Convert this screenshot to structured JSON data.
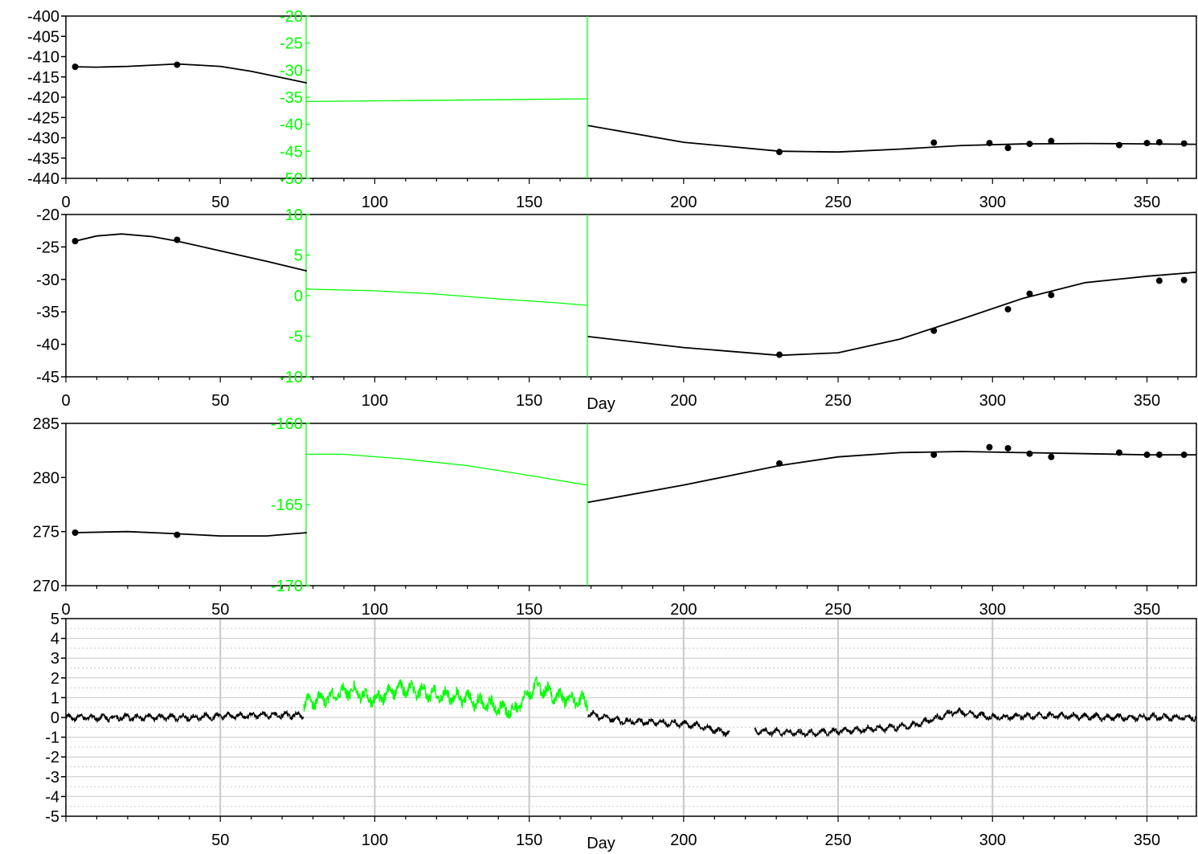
{
  "colors": {
    "primary": "#000000",
    "secondary": "#00ff00",
    "grid": "#c8c8c8",
    "background": "#ffffff"
  },
  "chart_data": [
    {
      "type": "line",
      "panel": 1,
      "x_ticks": [
        50,
        100,
        150,
        200,
        250,
        300,
        350
      ],
      "xlim": [
        0,
        366
      ],
      "xlabel": "",
      "ylim": [
        -440,
        -400
      ],
      "y_ticks": [
        -440,
        -435,
        -430,
        -425,
        -420,
        -415,
        -410,
        -405,
        -400
      ],
      "y2lim": [
        -50,
        -20
      ],
      "y2_ticks": [
        -50,
        -45,
        -40,
        -35,
        -30,
        -25,
        -20
      ],
      "gap_start": 78,
      "gap_end": 169,
      "points": {
        "x": [
          3,
          36,
          231,
          281,
          299,
          305,
          312,
          319,
          341,
          350,
          354,
          362
        ],
        "y": [
          -412.5,
          -412.0,
          -433.5,
          -431.2,
          -431.3,
          -432.5,
          -431.5,
          -430.8,
          -431.8,
          -431.3,
          -431.1,
          -431.4
        ]
      },
      "fit": {
        "x": [
          3,
          10,
          20,
          36,
          50,
          60,
          70,
          78,
          169,
          200,
          231,
          250,
          270,
          290,
          310,
          330,
          350,
          366
        ],
        "y": [
          -412.5,
          -412.6,
          -412.4,
          -411.8,
          -412.4,
          -413.6,
          -415.2,
          -416.5,
          -427.0,
          -431.1,
          -433.3,
          -433.5,
          -432.8,
          -431.9,
          -431.5,
          -431.4,
          -431.5,
          -431.6
        ]
      },
      "secondary_series": {
        "x": [
          78,
          169
        ],
        "y": [
          -35.8,
          -35.3
        ]
      }
    },
    {
      "type": "line",
      "panel": 2,
      "x_ticks": [
        50,
        100,
        150,
        200,
        250,
        300,
        350
      ],
      "xlim": [
        0,
        366
      ],
      "xlabel": "Day",
      "ylim": [
        -45,
        -20
      ],
      "y_ticks": [
        -45,
        -40,
        -35,
        -30,
        -25,
        -20
      ],
      "y2lim": [
        -10,
        10
      ],
      "y2_ticks": [
        -10,
        -5,
        0,
        5,
        10
      ],
      "gap_start": 78,
      "gap_end": 169,
      "points": {
        "x": [
          3,
          36,
          231,
          281,
          305,
          312,
          319,
          354,
          362
        ],
        "y": [
          -24.1,
          -23.9,
          -41.6,
          -37.9,
          -34.6,
          -32.2,
          -32.4,
          -30.2,
          -30.1
        ]
      },
      "fit": {
        "x": [
          3,
          10,
          18,
          28,
          36,
          50,
          65,
          78,
          169,
          200,
          231,
          250,
          270,
          290,
          310,
          330,
          350,
          366
        ],
        "y": [
          -24.1,
          -23.3,
          -23.0,
          -23.4,
          -24.1,
          -25.6,
          -27.2,
          -28.7,
          -38.8,
          -40.5,
          -41.7,
          -41.3,
          -39.2,
          -36.1,
          -32.9,
          -30.5,
          -29.5,
          -28.9
        ]
      },
      "secondary_series": {
        "x": [
          78,
          100,
          120,
          140,
          160,
          169
        ],
        "y": [
          0.8,
          0.6,
          0.2,
          -0.4,
          -0.9,
          -1.2
        ]
      }
    },
    {
      "type": "line",
      "panel": 3,
      "x_ticks": [
        50,
        100,
        150,
        200,
        250,
        300,
        350
      ],
      "xlim": [
        0,
        366
      ],
      "xlabel": "",
      "ylim": [
        270,
        285
      ],
      "y_ticks": [
        270,
        275,
        280,
        285
      ],
      "y2lim": [
        -170,
        -160
      ],
      "y2_ticks": [
        -170,
        -165,
        -160
      ],
      "gap_start": 78,
      "gap_end": 169,
      "points": {
        "x": [
          3,
          36,
          231,
          281,
          299,
          305,
          312,
          319,
          341,
          350,
          354,
          362
        ],
        "y": [
          274.9,
          274.7,
          281.3,
          282.1,
          282.8,
          282.7,
          282.2,
          281.9,
          282.3,
          282.1,
          282.1,
          282.1
        ]
      },
      "fit": {
        "x": [
          3,
          20,
          36,
          50,
          65,
          78,
          169,
          200,
          231,
          250,
          270,
          290,
          310,
          330,
          350,
          366
        ],
        "y": [
          274.9,
          275.0,
          274.8,
          274.6,
          274.6,
          274.9,
          277.7,
          279.3,
          281.1,
          281.9,
          282.3,
          282.4,
          282.3,
          282.2,
          282.1,
          282.1
        ]
      },
      "secondary_series": {
        "x": [
          78,
          90,
          110,
          130,
          150,
          169
        ],
        "y": [
          -161.9,
          -161.9,
          -162.2,
          -162.6,
          -163.2,
          -163.8
        ]
      }
    },
    {
      "type": "line",
      "panel": 4,
      "x_ticks": [
        50,
        100,
        150,
        200,
        250,
        300,
        350
      ],
      "xlim": [
        0,
        366
      ],
      "xlabel": "Day",
      "ylim": [
        -5,
        5
      ],
      "y_ticks": [
        -5,
        -4,
        -3,
        -2,
        -1,
        0,
        1,
        2,
        3,
        4,
        5
      ],
      "grid": true,
      "series": [
        {
          "color": "#000000",
          "x": [
            0,
            20,
            40,
            60,
            77
          ],
          "y": [
            0.0,
            0.0,
            0.0,
            0.1,
            0.1
          ]
        },
        {
          "color": "#00ff00",
          "x": [
            77,
            85,
            92,
            100,
            108,
            118,
            128,
            138,
            145,
            152,
            160,
            169
          ],
          "y": [
            0.7,
            1.0,
            1.4,
            0.9,
            1.5,
            1.2,
            1.0,
            0.6,
            0.3,
            1.6,
            1.0,
            0.8
          ]
        },
        {
          "color": "#000000",
          "x": [
            169,
            180,
            200,
            215
          ],
          "y": [
            0.2,
            -0.2,
            -0.3,
            -0.8
          ]
        },
        {
          "color": "#000000",
          "x": [
            223,
            240,
            260,
            275,
            288,
            300,
            320,
            340,
            366
          ],
          "y": [
            -0.7,
            -0.8,
            -0.6,
            -0.4,
            0.3,
            0.0,
            0.1,
            0.0,
            0.0
          ]
        }
      ]
    }
  ]
}
